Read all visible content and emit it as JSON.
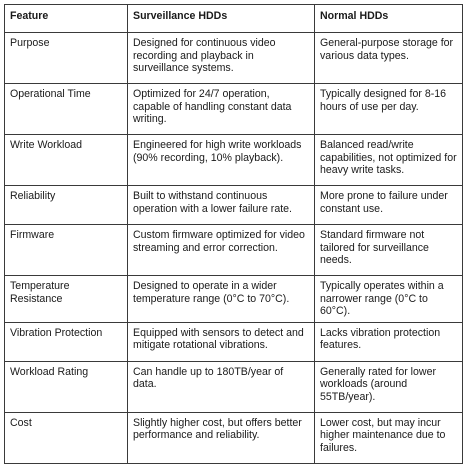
{
  "table": {
    "headers": [
      "Feature",
      "Surveillance HDDs",
      "Normal HDDs"
    ],
    "rows": [
      {
        "feature": "Purpose",
        "surveillance": "Designed for continuous video recording and playback in surveillance systems.",
        "normal": "General-purpose storage for various data types."
      },
      {
        "feature": "Operational Time",
        "surveillance": "Optimized for 24/7 operation, capable of handling constant data writing.",
        "normal": "Typically designed for 8-16 hours of use per day."
      },
      {
        "feature": "Write Workload",
        "surveillance": "Engineered for high write workloads (90% recording, 10% playback).",
        "normal": "Balanced read/write capabilities, not optimized for heavy write tasks."
      },
      {
        "feature": "Reliability",
        "surveillance": "Built to withstand continuous operation with a lower failure rate.",
        "normal": "More prone to failure under constant use."
      },
      {
        "feature": "Firmware",
        "surveillance": "Custom firmware optimized for video streaming and error correction.",
        "normal": "Standard firmware not tailored for surveillance needs."
      },
      {
        "feature": "Temperature Resistance",
        "surveillance": "Designed to operate in a wider temperature range (0°C to 70°C).",
        "normal": "Typically operates within a narrower range (0°C to 60°C)."
      },
      {
        "feature": "Vibration Protection",
        "surveillance": "Equipped with sensors to detect and mitigate rotational vibrations.",
        "normal": "Lacks vibration protection features."
      },
      {
        "feature": "Workload Rating",
        "surveillance": "Can handle up to 180TB/year of data.",
        "normal": "Generally rated for lower workloads (around 55TB/year)."
      },
      {
        "feature": "Cost",
        "surveillance": "Slightly higher cost, but offers better performance and reliability.",
        "normal": "Lower cost, but may incur higher maintenance due to failures."
      }
    ]
  }
}
